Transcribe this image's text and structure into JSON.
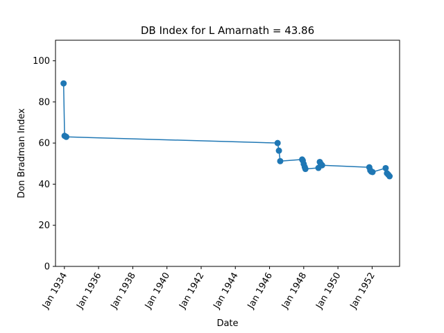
{
  "chart_data": {
    "type": "line",
    "title": "DB Index for L Amarnath = 43.86",
    "xlabel": "Date",
    "ylabel": "Don Bradman Index",
    "xlim": [
      "1933-06-25",
      "1953-08-10"
    ],
    "ylim": [
      0,
      110
    ],
    "grid": false,
    "legend": "none",
    "x_ticks": [
      "1934-01-01",
      "1936-01-01",
      "1938-01-01",
      "1940-01-01",
      "1942-01-01",
      "1944-01-01",
      "1946-01-01",
      "1948-01-01",
      "1950-01-01",
      "1952-01-01"
    ],
    "x_tick_labels": [
      "Jan 1934",
      "Jan 1936",
      "Jan 1938",
      "Jan 1940",
      "Jan 1942",
      "Jan 1944",
      "Jan 1946",
      "Jan 1948",
      "Jan 1950",
      "Jan 1952"
    ],
    "y_ticks": [
      0,
      20,
      40,
      60,
      80,
      100
    ],
    "y_tick_labels": [
      "0",
      "20",
      "40",
      "60",
      "80",
      "100"
    ],
    "series": [
      {
        "color": "#1f77b4",
        "marker": "circle",
        "points": [
          {
            "x": "1933-12-15",
            "y": 89.0
          },
          {
            "x": "1934-01-05",
            "y": 63.5
          },
          {
            "x": "1934-02-10",
            "y": 63.0
          },
          {
            "x": "1946-06-22",
            "y": 60.0
          },
          {
            "x": "1946-07-20",
            "y": 56.3
          },
          {
            "x": "1946-08-17",
            "y": 51.2
          },
          {
            "x": "1947-11-28",
            "y": 52.0
          },
          {
            "x": "1947-12-12",
            "y": 51.5
          },
          {
            "x": "1948-01-01",
            "y": 49.8
          },
          {
            "x": "1948-01-23",
            "y": 48.3
          },
          {
            "x": "1948-02-06",
            "y": 47.4
          },
          {
            "x": "1948-11-10",
            "y": 47.9
          },
          {
            "x": "1948-12-09",
            "y": 50.8
          },
          {
            "x": "1948-12-31",
            "y": 49.9
          },
          {
            "x": "1949-01-27",
            "y": 49.2
          },
          {
            "x": "1951-11-02",
            "y": 48.2
          },
          {
            "x": "1951-11-23",
            "y": 46.7
          },
          {
            "x": "1951-12-14",
            "y": 46.1
          },
          {
            "x": "1952-01-10",
            "y": 45.9
          },
          {
            "x": "1952-10-16",
            "y": 47.8
          },
          {
            "x": "1952-11-13",
            "y": 45.3
          },
          {
            "x": "1952-12-12",
            "y": 44.6
          },
          {
            "x": "1953-01-08",
            "y": 43.86
          }
        ]
      }
    ]
  }
}
